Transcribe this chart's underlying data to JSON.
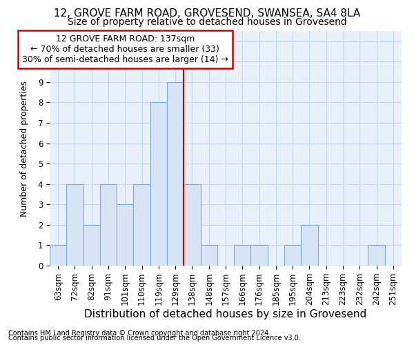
{
  "title_line1": "12, GROVE FARM ROAD, GROVESEND, SWANSEA, SA4 8LA",
  "title_line2": "Size of property relative to detached houses in Grovesend",
  "xlabel": "Distribution of detached houses by size in Grovesend",
  "ylabel": "Number of detached properties",
  "footnote1": "Contains HM Land Registry data © Crown copyright and database right 2024.",
  "footnote2": "Contains public sector information licensed under the Open Government Licence v3.0.",
  "bin_labels": [
    "63sqm",
    "72sqm",
    "82sqm",
    "91sqm",
    "101sqm",
    "110sqm",
    "119sqm",
    "129sqm",
    "138sqm",
    "148sqm",
    "157sqm",
    "166sqm",
    "176sqm",
    "185sqm",
    "195sqm",
    "204sqm",
    "213sqm",
    "223sqm",
    "232sqm",
    "242sqm",
    "251sqm"
  ],
  "bar_heights": [
    1,
    4,
    2,
    4,
    3,
    4,
    8,
    9,
    4,
    1,
    0,
    1,
    1,
    0,
    1,
    2,
    0,
    0,
    0,
    1,
    0
  ],
  "bar_color": "#d6e4f5",
  "bar_edge_color": "#7aadd4",
  "grid_color": "#c5d8ee",
  "bg_color": "#e8f0fa",
  "ref_line_x": 8.0,
  "ref_line_color": "#cc0000",
  "annotation_line1": "12 GROVE FARM ROAD: 137sqm",
  "annotation_line2": "← 70% of detached houses are smaller (33)",
  "annotation_line3": "30% of semi-detached houses are larger (14) →",
  "annotation_box_color": "#cc0000",
  "ylim_max": 11.5,
  "title_fontsize": 11,
  "subtitle_fontsize": 10,
  "ylabel_fontsize": 9,
  "xlabel_fontsize": 11,
  "tick_fontsize": 8.5,
  "annotation_fontsize": 9,
  "footnote_fontsize": 7
}
